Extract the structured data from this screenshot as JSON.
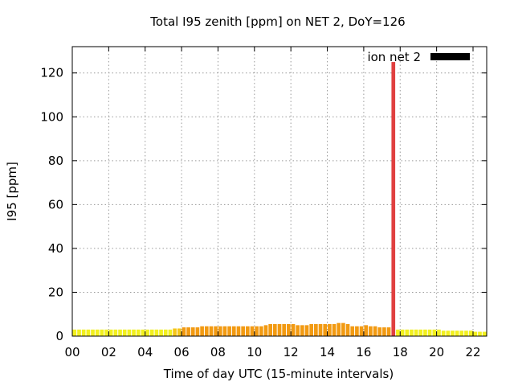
{
  "chart_data": {
    "type": "bar",
    "title": "Total I95 zenith [ppm] on NET 2, DoY=126",
    "xlabel": "Time of day UTC (15-minute intervals)",
    "ylabel": "I95 [ppm]",
    "xlim": [
      0,
      22.75
    ],
    "ylim": [
      0,
      132
    ],
    "x_ticks": [
      "00",
      "02",
      "04",
      "06",
      "08",
      "10",
      "12",
      "14",
      "16",
      "18",
      "20",
      "22"
    ],
    "y_ticks": [
      "0",
      "20",
      "40",
      "60",
      "80",
      "100",
      "120"
    ],
    "grid": true,
    "legend": {
      "position": "top-right",
      "entries": [
        {
          "label": "ion net 2",
          "color": "#000000"
        }
      ]
    },
    "bin_width_hours": 0.25,
    "series": [
      {
        "name": "ion net 2",
        "x_start_hours": 0,
        "values": [
          3.0,
          3.0,
          3.0,
          3.0,
          3.0,
          3.0,
          3.0,
          3.0,
          3.0,
          3.0,
          3.0,
          3.0,
          3.0,
          3.0,
          3.0,
          3.0,
          3.0,
          3.0,
          3.0,
          3.0,
          3.0,
          3.0,
          3.5,
          3.5,
          4.0,
          4.0,
          4.0,
          4.0,
          4.5,
          4.5,
          4.5,
          4.5,
          4.5,
          4.5,
          4.5,
          4.5,
          4.5,
          4.5,
          4.5,
          4.5,
          4.5,
          4.5,
          5.0,
          5.5,
          5.5,
          5.5,
          5.5,
          5.5,
          5.5,
          5.0,
          5.0,
          5.0,
          5.5,
          5.5,
          5.5,
          5.5,
          5.5,
          5.5,
          6.0,
          6.0,
          5.5,
          4.5,
          4.5,
          4.5,
          5.0,
          4.5,
          4.5,
          4.0,
          4.0,
          4.0,
          125.0,
          3.0,
          3.0,
          3.0,
          3.0,
          3.0,
          3.0,
          3.0,
          3.0,
          3.0,
          3.0,
          2.5,
          2.5,
          2.5,
          2.5,
          2.5,
          2.5,
          2.5,
          2.0,
          2.0,
          2.0
        ]
      }
    ],
    "colors": {
      "low": "#f2f01e",
      "mid": "#f5c518",
      "high": "#f29a12",
      "peak": "#e04040",
      "grid": "#9a9a9a"
    }
  }
}
